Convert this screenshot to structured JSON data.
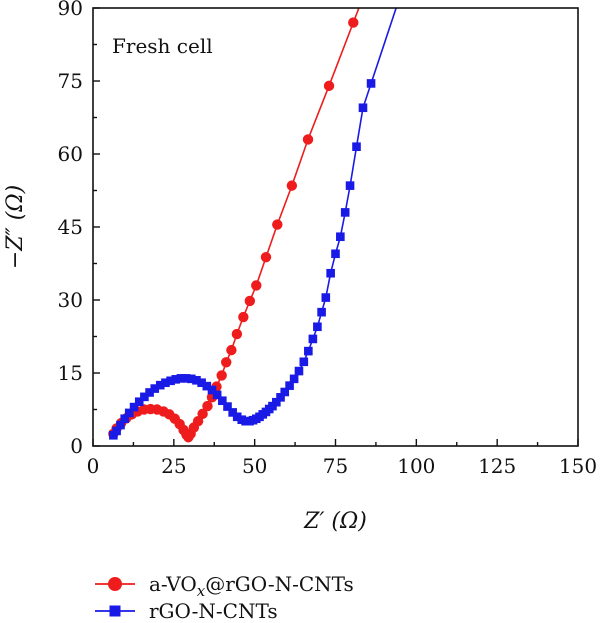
{
  "chart_data": {
    "type": "scatter",
    "title": "",
    "annotation": "Fresh cell",
    "xlabel": "Z′ (Ω)",
    "ylabel": "−Z″ (Ω)",
    "xlim": [
      0,
      150
    ],
    "ylim": [
      0,
      90
    ],
    "xticks": [
      0,
      25,
      50,
      75,
      100,
      125,
      150
    ],
    "yticks": [
      0,
      15,
      30,
      45,
      60,
      75,
      90
    ],
    "xtick_labels": [
      "0",
      "25",
      "50",
      "75",
      "100",
      "125",
      "150"
    ],
    "ytick_labels": [
      "0",
      "15",
      "30",
      "45",
      "60",
      "75",
      "90"
    ],
    "grid": false,
    "legend_position": "bottom",
    "series": [
      {
        "name": "a-VOₓ@rGO-N-CNTs",
        "name_main": "a-VO",
        "name_sub": "x",
        "name_rest": "@rGO-N-CNTs",
        "color": "#ee1c1c",
        "marker": "circle",
        "x": [
          6.3,
          7.3,
          8.7,
          10.3,
          12,
          13.8,
          15.8,
          17.8,
          19.8,
          21.8,
          23.6,
          25.3,
          26.8,
          28,
          28.9,
          29.5,
          30.2,
          31.2,
          32.5,
          33.9,
          35.4,
          36.8,
          38.2,
          39.8,
          41.2,
          42.8,
          44.5,
          46.5,
          48.5,
          50.5,
          53.5,
          57,
          61.5,
          66.5,
          73,
          80.5
        ],
        "y": [
          2.5,
          3.6,
          4.7,
          5.7,
          6.5,
          7.1,
          7.5,
          7.6,
          7.5,
          7.1,
          6.5,
          5.6,
          4.5,
          3.3,
          2.3,
          1.8,
          2.5,
          3.8,
          5.1,
          6.6,
          8.2,
          10,
          12.2,
          14.5,
          17.2,
          19.7,
          23,
          26.5,
          29.8,
          33,
          38.8,
          45.5,
          53.5,
          63,
          74,
          87
        ]
      },
      {
        "name": "rGO-N-CNTs",
        "color": "#1a1ae6",
        "marker": "square",
        "x": [
          6.3,
          7.3,
          8.5,
          9.8,
          11.2,
          12.7,
          14.3,
          15.9,
          17.5,
          19.1,
          20.8,
          22.4,
          24,
          25.6,
          27.2,
          28.8,
          30.4,
          32,
          33.6,
          35.2,
          36.8,
          38.4,
          40,
          41.6,
          43.2,
          44.6,
          46,
          47.2,
          48.4,
          49.5,
          50.5,
          51.5,
          52.5,
          53.5,
          54.5,
          55.5,
          56.7,
          58,
          59.3,
          60.8,
          62.2,
          63.7,
          65.2,
          66.6,
          68,
          69.4,
          70.7,
          72,
          73.5,
          75,
          76.5,
          78,
          79.5,
          81.5,
          83.5,
          86
        ],
        "y": [
          2.2,
          3.1,
          4.3,
          5.6,
          6.8,
          8,
          9.1,
          10.1,
          11,
          11.8,
          12.5,
          13,
          13.4,
          13.7,
          13.9,
          13.9,
          13.8,
          13.5,
          13,
          12.3,
          11.5,
          10.5,
          9.3,
          8.1,
          6.9,
          6,
          5.4,
          5.1,
          5.1,
          5.3,
          5.6,
          6,
          6.5,
          7,
          7.6,
          8.2,
          9,
          10,
          11.1,
          12.4,
          13.8,
          15.4,
          17.3,
          19.5,
          22,
          24.5,
          27.5,
          30.5,
          35.5,
          39.5,
          43,
          48,
          53.5,
          61.5,
          69.5,
          74.5
        ]
      }
    ]
  }
}
